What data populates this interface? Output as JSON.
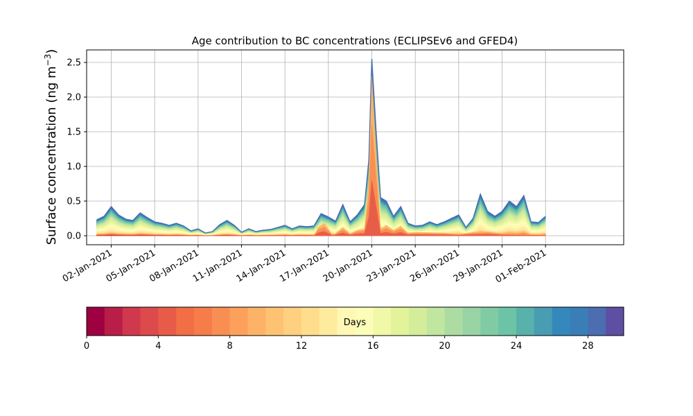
{
  "chart_data": {
    "type": "area",
    "title": "Age contribution to BC concentrations (ECLIPSEv6 and GFED4)",
    "ylabel": "Surface concentration (ng m",
    "ylabel_sup": "−3",
    "ylabel_close": ")",
    "xlabel": "",
    "ylim": [
      -0.13,
      2.68
    ],
    "xlim": [
      -0.7,
      36.4
    ],
    "yticks": [
      "0.0",
      "0.5",
      "1.0",
      "1.5",
      "2.0",
      "2.5"
    ],
    "ytick_values": [
      0,
      0.5,
      1.0,
      1.5,
      2.0,
      2.5
    ],
    "xticks": [
      "02-Jan-2021",
      "05-Jan-2021",
      "08-Jan-2021",
      "11-Jan-2021",
      "14-Jan-2021",
      "17-Jan-2021",
      "20-Jan-2021",
      "23-Jan-2021",
      "26-Jan-2021",
      "29-Jan-2021",
      "01-Feb-2021"
    ],
    "xtick_values": [
      1,
      4,
      7,
      10,
      13,
      16,
      19,
      22,
      25,
      28,
      31
    ],
    "grid": true,
    "total": {
      "x": [
        0.0,
        0.5,
        1.0,
        1.5,
        2.0,
        2.5,
        3.0,
        3.5,
        4.0,
        4.5,
        5.0,
        5.5,
        6.0,
        6.5,
        7.0,
        7.5,
        8.0,
        8.5,
        9.0,
        9.5,
        10.0,
        10.5,
        11.0,
        11.5,
        12.0,
        12.5,
        13.0,
        13.5,
        14.0,
        14.5,
        15.0,
        15.5,
        16.0,
        16.5,
        17.0,
        17.5,
        18.0,
        18.5,
        18.8,
        19.0,
        19.3,
        19.6,
        20.0,
        20.5,
        21.0,
        21.5,
        22.0,
        22.5,
        23.0,
        23.5,
        24.0,
        24.5,
        25.0,
        25.5,
        26.0,
        26.5,
        27.0,
        27.5,
        28.0,
        28.5,
        29.0,
        29.5,
        30.0,
        30.5,
        31.0
      ],
      "y": [
        0.23,
        0.28,
        0.42,
        0.3,
        0.24,
        0.22,
        0.33,
        0.26,
        0.2,
        0.18,
        0.15,
        0.18,
        0.14,
        0.07,
        0.1,
        0.04,
        0.06,
        0.16,
        0.22,
        0.15,
        0.05,
        0.1,
        0.06,
        0.08,
        0.09,
        0.12,
        0.15,
        0.1,
        0.14,
        0.13,
        0.14,
        0.32,
        0.27,
        0.21,
        0.45,
        0.2,
        0.3,
        0.45,
        1.1,
        2.55,
        1.5,
        0.55,
        0.5,
        0.28,
        0.42,
        0.18,
        0.14,
        0.15,
        0.2,
        0.16,
        0.2,
        0.25,
        0.3,
        0.12,
        0.25,
        0.6,
        0.35,
        0.28,
        0.35,
        0.5,
        0.42,
        0.58,
        0.2,
        0.19,
        0.28
      ]
    },
    "young": {
      "x": [
        0.0,
        15.0,
        15.3,
        15.7,
        16.0,
        16.3,
        17.0,
        17.5,
        18.0,
        18.5,
        18.8,
        19.0,
        19.3,
        19.6,
        20.0,
        20.5,
        21.0,
        21.5,
        22.0,
        24.0,
        25.0,
        26.0,
        27.0,
        28.0,
        31.0
      ],
      "y": [
        0.0,
        0.0,
        0.12,
        0.18,
        0.1,
        0.0,
        0.12,
        0.03,
        0.08,
        0.1,
        0.8,
        2.3,
        1.2,
        0.1,
        0.15,
        0.08,
        0.14,
        0.04,
        0.05,
        0.04,
        0.02,
        0.05,
        0.06,
        0.03,
        0.01
      ]
    },
    "colorbar": {
      "label": "Days",
      "min": 0,
      "max": 30,
      "ticks": [
        "0",
        "4",
        "8",
        "12",
        "16",
        "20",
        "24",
        "28"
      ],
      "tick_values": [
        0,
        4,
        8,
        12,
        16,
        20,
        24,
        28
      ],
      "colors": [
        "#9e0142",
        "#b81e48",
        "#cf384d",
        "#dc4a4c",
        "#e85b48",
        "#f26e45",
        "#f67c4a",
        "#f98e52",
        "#fca05b",
        "#fdb365",
        "#fdc372",
        "#fed080",
        "#fede8d",
        "#feeb9e",
        "#fff8b4",
        "#fbfdb8",
        "#f1f9a9",
        "#e3f399",
        "#d4ed9b",
        "#c1e69f",
        "#addca2",
        "#98d4a4",
        "#80cba4",
        "#6cc3a5",
        "#58b2ab",
        "#489db3",
        "#3588bc",
        "#3a7eb8",
        "#4c6db0",
        "#5e4fa2"
      ]
    }
  }
}
